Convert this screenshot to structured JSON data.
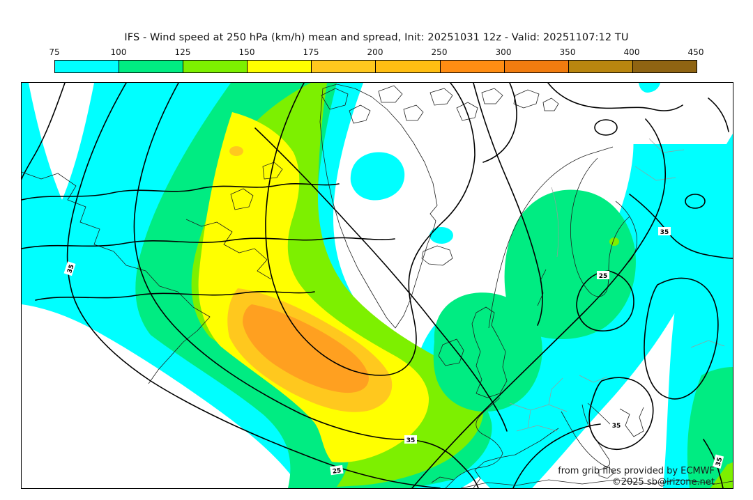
{
  "title": "IFS - Wind speed at 250 hPa (km/h) mean and spread, Init: 20251031 12z - Valid: 20251107:12 TU",
  "colorbar": {
    "ticks": [
      "75",
      "100",
      "125",
      "150",
      "175",
      "200",
      "250",
      "300",
      "350",
      "400",
      "450"
    ],
    "segment_colors": [
      "#00ffff",
      "#00ec82",
      "#7df000",
      "#ffff00",
      "#ffc81e",
      "#ffbe12",
      "#ff8d13",
      "#f17c0f",
      "#b9860f",
      "#8f6412"
    ]
  },
  "map": {
    "colors": {
      "white": "#ffffff",
      "cyan": "#00ffff",
      "green": "#00ec82",
      "chartreuse": "#7df000",
      "yellow": "#ffff00",
      "gold": "#ffc81e",
      "orange": "#ffa020",
      "coast": "#1f1f1f",
      "border_gray": "#9a9a9a",
      "contour": "#000000"
    },
    "contour_labels": [
      {
        "value": "35"
      },
      {
        "value": "25"
      },
      {
        "value": "35"
      },
      {
        "value": "25"
      },
      {
        "value": "35"
      },
      {
        "value": "35"
      },
      {
        "value": "35"
      }
    ],
    "credit_line1": "from grib files provided by ECMWF",
    "credit_line2": "©2025 sb@irizone.net"
  }
}
